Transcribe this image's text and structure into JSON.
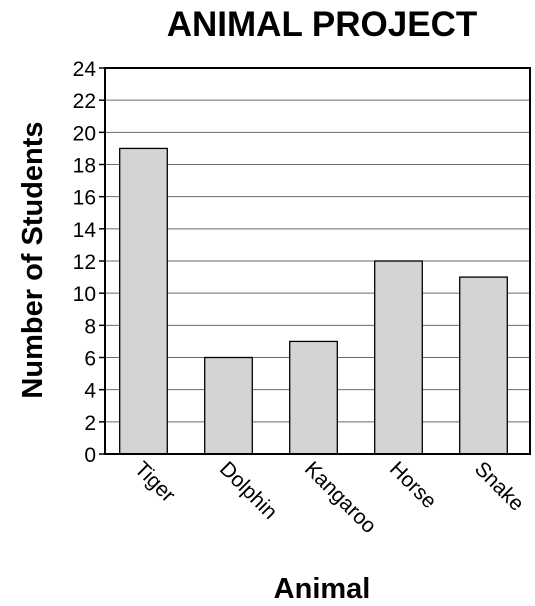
{
  "chart_data": {
    "type": "bar",
    "title": "ANIMAL PROJECT",
    "xlabel": "Animal",
    "ylabel": "Number of Students",
    "categories": [
      "Tiger",
      "Dolphin",
      "Kangaroo",
      "Horse",
      "Snake"
    ],
    "values": [
      19,
      6,
      7,
      12,
      11
    ],
    "ylim": [
      0,
      24
    ],
    "yticks": [
      "0",
      "2",
      "4",
      "6",
      "8",
      "10",
      "12",
      "14",
      "16",
      "18",
      "20",
      "22",
      "24"
    ],
    "grid": true,
    "bar_color": "#d4d4d6"
  }
}
